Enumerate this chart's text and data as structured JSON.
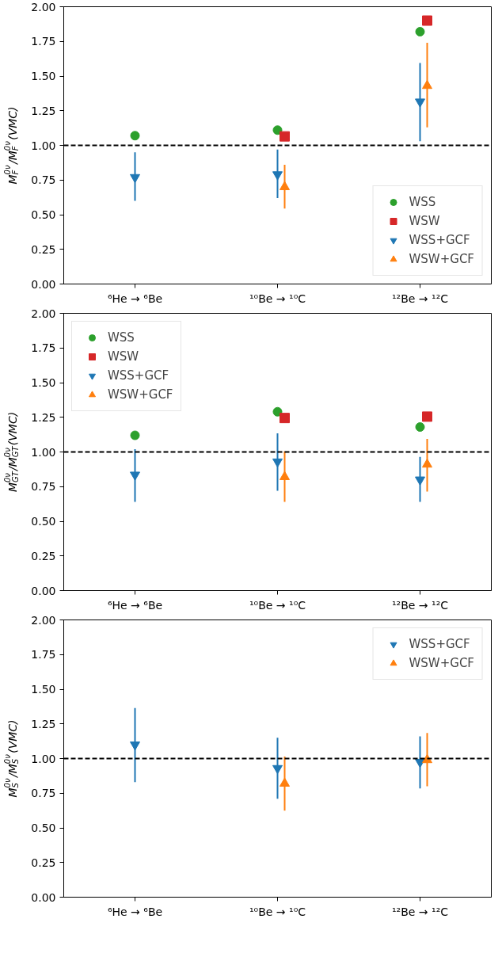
{
  "chart_data": [
    {
      "type": "scatter",
      "ylabel": "M$_{F}$$^{0ν}$/M$_{F}$$^{0ν}$(VMC)",
      "categories": [
        "⁶He → ⁶Be",
        "¹⁰Be → ¹⁰C",
        "¹²Be → ¹²C"
      ],
      "ylim": [
        0,
        2
      ],
      "yticks": [
        {
          "value": 0,
          "label": "0.00"
        },
        {
          "value": 0.25,
          "label": "0.25"
        },
        {
          "value": 0.5,
          "label": "0.50"
        },
        {
          "value": 0.75,
          "label": "0.75"
        },
        {
          "value": 1,
          "label": "1.00"
        },
        {
          "value": 1.25,
          "label": "1.25"
        },
        {
          "value": 1.5,
          "label": "1.50"
        },
        {
          "value": 1.75,
          "label": "1.75"
        },
        {
          "value": 2,
          "label": "2.00"
        }
      ],
      "grid": false,
      "legend": "bottom right",
      "ref_lines": [
        {
          "axis": "y",
          "value": 1,
          "color": "#000000",
          "line_style": "dashed"
        }
      ],
      "series": [
        {
          "name": "WSS",
          "color": "#2ca02c",
          "marker": "circle",
          "values": [
            1.07,
            1.11,
            1.82
          ]
        },
        {
          "name": "WSW",
          "color": "#d62728",
          "marker": "square",
          "values": [
            null,
            1.065,
            1.9
          ]
        },
        {
          "name": "WSS+GCF",
          "color": "#1f77b4",
          "marker": "triangle_down",
          "values": [
            0.77,
            0.79,
            1.315
          ],
          "errors": [
            [
              0.6,
              0.95
            ],
            [
              0.62,
              0.97
            ],
            [
              1.03,
              1.595
            ]
          ]
        },
        {
          "name": "WSW+GCF",
          "color": "#ff7f0e",
          "marker": "triangle",
          "values": [
            null,
            0.7,
            1.43
          ],
          "errors": [
            null,
            [
              0.545,
              0.86
            ],
            [
              1.13,
              1.74
            ]
          ]
        }
      ]
    },
    {
      "type": "scatter",
      "ylabel": "M$_{GT}$$^{0ν}$/M$_{GT}$$^{0ν}$(VMC)",
      "categories": [
        "⁶He → ⁶Be",
        "¹⁰Be → ¹⁰C",
        "¹²Be → ¹²C"
      ],
      "ylim": [
        0,
        2
      ],
      "yticks": [
        {
          "value": 0,
          "label": "0.00"
        },
        {
          "value": 0.25,
          "label": "0.25"
        },
        {
          "value": 0.5,
          "label": "0.50"
        },
        {
          "value": 0.75,
          "label": "0.75"
        },
        {
          "value": 1,
          "label": "1.00"
        },
        {
          "value": 1.25,
          "label": "1.25"
        },
        {
          "value": 1.5,
          "label": "1.50"
        },
        {
          "value": 1.75,
          "label": "1.75"
        },
        {
          "value": 2,
          "label": "2.00"
        }
      ],
      "grid": false,
      "legend": "top left",
      "ref_lines": [
        {
          "axis": "y",
          "value": 1,
          "color": "#000000",
          "line_style": "dashed"
        }
      ],
      "series": [
        {
          "name": "WSS",
          "color": "#2ca02c",
          "marker": "circle",
          "values": [
            1.12,
            1.29,
            1.18
          ]
        },
        {
          "name": "WSW",
          "color": "#d62728",
          "marker": "square",
          "values": [
            null,
            1.245,
            1.255
          ]
        },
        {
          "name": "WSS+GCF",
          "color": "#1f77b4",
          "marker": "triangle_down",
          "values": [
            0.835,
            0.93,
            0.8
          ],
          "errors": [
            [
              0.64,
              1.02
            ],
            [
              0.72,
              1.135
            ],
            [
              0.64,
              0.965
            ]
          ]
        },
        {
          "name": "WSW+GCF",
          "color": "#ff7f0e",
          "marker": "triangle",
          "values": [
            null,
            0.82,
            0.91
          ],
          "errors": [
            null,
            [
              0.64,
              1.005
            ],
            [
              0.715,
              1.095
            ]
          ]
        }
      ]
    },
    {
      "type": "scatter",
      "ylabel": "M$_{S}$$^{0ν}$/M$_{S}$$^{0ν}$(VMC)",
      "categories": [
        "⁶He → ⁶Be",
        "¹⁰Be → ¹⁰C",
        "¹²Be → ¹²C"
      ],
      "ylim": [
        0,
        2
      ],
      "yticks": [
        {
          "value": 0,
          "label": "0.00"
        },
        {
          "value": 0.25,
          "label": "0.25"
        },
        {
          "value": 0.5,
          "label": "0.50"
        },
        {
          "value": 0.75,
          "label": "0.75"
        },
        {
          "value": 1,
          "label": "1.00"
        },
        {
          "value": 1.25,
          "label": "1.25"
        },
        {
          "value": 1.5,
          "label": "1.50"
        },
        {
          "value": 1.75,
          "label": "1.75"
        },
        {
          "value": 2,
          "label": "2.00"
        }
      ],
      "grid": false,
      "legend": "top right",
      "ref_lines": [
        {
          "axis": "y",
          "value": 1,
          "color": "#000000",
          "line_style": "dashed"
        }
      ],
      "series": [
        {
          "name": "WSS+GCF",
          "color": "#1f77b4",
          "marker": "triangle_down",
          "values": [
            1.1,
            0.93,
            0.975
          ],
          "errors": [
            [
              0.83,
              1.365
            ],
            [
              0.71,
              1.15
            ],
            [
              0.785,
              1.16
            ]
          ]
        },
        {
          "name": "WSW+GCF",
          "color": "#ff7f0e",
          "marker": "triangle",
          "values": [
            null,
            0.82,
            0.99
          ],
          "errors": [
            null,
            [
              0.625,
              1.015
            ],
            [
              0.8,
              1.185
            ]
          ]
        }
      ]
    }
  ]
}
